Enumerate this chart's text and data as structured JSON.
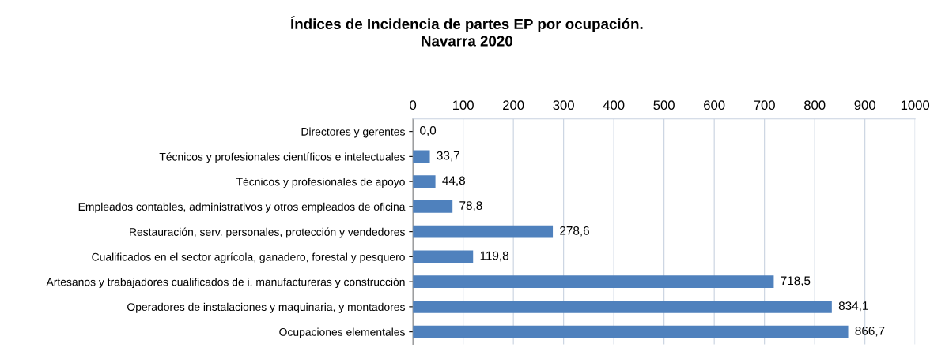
{
  "chart_data": {
    "type": "bar",
    "orientation": "horizontal",
    "title": "Índices de Incidencia de partes EP por ocupación.\nNavarra 2020",
    "categories": [
      "Directores y gerentes",
      "Técnicos y profesionales científicos e intelectuales",
      "Técnicos y profesionales de apoyo",
      "Empleados contables, administrativos y otros empleados de oficina",
      "Restauración, serv. personales, protección y vendedores",
      "Cualificados en el sector agrícola, ganadero, forestal y pesquero",
      "Artesanos y trabajadores cualificados de i. manufactureras y construcción",
      "Operadores de instalaciones y maquinaria, y montadores",
      "Ocupaciones elementales"
    ],
    "values": [
      0.0,
      33.7,
      44.8,
      78.8,
      278.6,
      119.8,
      718.5,
      834.1,
      866.7
    ],
    "value_labels": [
      "0,0",
      "33,7",
      "44,8",
      "78,8",
      "278,6",
      "119,8",
      "718,5",
      "834,1",
      "866,7"
    ],
    "color": "#4f81bd",
    "xlim": [
      0,
      1000
    ],
    "xticks": [
      0,
      100,
      200,
      300,
      400,
      500,
      600,
      700,
      800,
      900,
      1000
    ],
    "grid": "x"
  }
}
